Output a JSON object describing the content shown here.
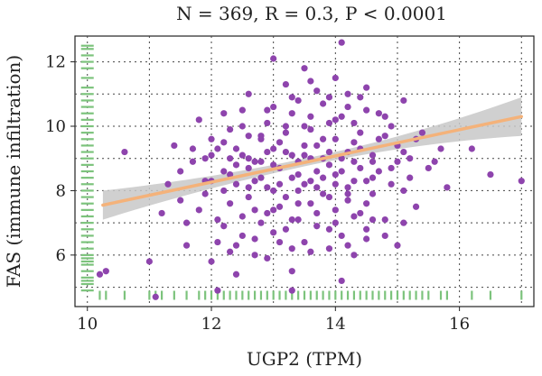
{
  "chart_data": {
    "type": "scatter",
    "title": "N = 369, R = 0.3, P < 0.0001",
    "xlabel": "UGP2 (TPM)",
    "ylabel": "FAS (immune infiltration)",
    "xlim": [
      9.8,
      17.2
    ],
    "ylim": [
      4.4,
      12.8
    ],
    "x_ticks": [
      10,
      12,
      14,
      16
    ],
    "y_ticks": [
      6,
      8,
      10,
      12
    ],
    "grid": true,
    "grid_style": "dotted",
    "regression": {
      "x_start": 10.25,
      "y_start": 7.55,
      "x_end": 17.0,
      "y_end": 10.3,
      "ci_halfwidth_start": 0.45,
      "ci_halfwidth_mid": 0.12,
      "ci_halfwidth_end": 0.6
    },
    "marginal_rug": true,
    "colors": {
      "points": "#8e44ad",
      "regression": "#f4b27a",
      "ci_band": "#c8c8c8",
      "rug": "#7cc37c"
    },
    "series": [
      {
        "values_note": "approximate scatter points (x, y)",
        "points": [
          [
            10.2,
            5.4
          ],
          [
            10.3,
            5.5
          ],
          [
            10.6,
            9.2
          ],
          [
            11.0,
            5.8
          ],
          [
            11.1,
            4.7
          ],
          [
            11.2,
            7.3
          ],
          [
            11.3,
            8.2
          ],
          [
            11.4,
            9.4
          ],
          [
            11.5,
            7.7
          ],
          [
            11.6,
            7.0
          ],
          [
            11.6,
            6.3
          ],
          [
            11.7,
            9.3
          ],
          [
            11.8,
            10.2
          ],
          [
            11.9,
            7.9
          ],
          [
            11.9,
            9.0
          ],
          [
            12.0,
            5.8
          ],
          [
            12.0,
            8.3
          ],
          [
            12.0,
            9.6
          ],
          [
            12.1,
            7.1
          ],
          [
            12.1,
            4.9
          ],
          [
            12.2,
            10.4
          ],
          [
            12.2,
            6.9
          ],
          [
            12.2,
            8.6
          ],
          [
            12.3,
            6.1
          ],
          [
            12.3,
            9.9
          ],
          [
            12.3,
            7.6
          ],
          [
            12.4,
            8.8
          ],
          [
            12.4,
            5.4
          ],
          [
            12.4,
            9.3
          ],
          [
            12.5,
            7.2
          ],
          [
            12.5,
            10.5
          ],
          [
            12.5,
            6.6
          ],
          [
            12.6,
            8.1
          ],
          [
            12.6,
            9.0
          ],
          [
            12.6,
            11.0
          ],
          [
            12.7,
            7.4
          ],
          [
            12.7,
            8.9
          ],
          [
            12.7,
            6.0
          ],
          [
            12.8,
            9.7
          ],
          [
            12.8,
            7.0
          ],
          [
            12.8,
            8.4
          ],
          [
            12.9,
            10.1
          ],
          [
            12.9,
            5.9
          ],
          [
            12.9,
            9.2
          ],
          [
            13.0,
            12.1
          ],
          [
            13.0,
            8.0
          ],
          [
            13.0,
            7.4
          ],
          [
            13.0,
            10.6
          ],
          [
            13.1,
            6.4
          ],
          [
            13.1,
            9.5
          ],
          [
            13.1,
            8.7
          ],
          [
            13.2,
            11.3
          ],
          [
            13.2,
            7.8
          ],
          [
            13.2,
            6.8
          ],
          [
            13.2,
            10.0
          ],
          [
            13.3,
            8.4
          ],
          [
            13.3,
            9.1
          ],
          [
            13.3,
            5.5
          ],
          [
            13.4,
            10.8
          ],
          [
            13.4,
            7.1
          ],
          [
            13.4,
            8.9
          ],
          [
            13.5,
            11.8
          ],
          [
            13.5,
            9.4
          ],
          [
            13.5,
            6.4
          ],
          [
            13.5,
            8.2
          ],
          [
            13.6,
            10.3
          ],
          [
            13.6,
            7.6
          ],
          [
            13.6,
            9.9
          ],
          [
            13.7,
            11.1
          ],
          [
            13.7,
            8.6
          ],
          [
            13.7,
            6.9
          ],
          [
            13.8,
            9.6
          ],
          [
            13.8,
            7.9
          ],
          [
            13.8,
            10.7
          ],
          [
            13.9,
            8.8
          ],
          [
            13.9,
            6.2
          ],
          [
            13.9,
            9.2
          ],
          [
            14.0,
            11.5
          ],
          [
            14.0,
            7.4
          ],
          [
            14.0,
            8.5
          ],
          [
            14.0,
            10.2
          ],
          [
            14.1,
            9.0
          ],
          [
            14.1,
            6.6
          ],
          [
            14.1,
            12.6
          ],
          [
            14.2,
            8.1
          ],
          [
            14.2,
            10.6
          ],
          [
            14.2,
            7.7
          ],
          [
            14.3,
            9.5
          ],
          [
            14.3,
            8.9
          ],
          [
            14.3,
            6.0
          ],
          [
            14.4,
            10.9
          ],
          [
            14.4,
            7.3
          ],
          [
            14.4,
            9.8
          ],
          [
            14.5,
            8.3
          ],
          [
            14.5,
            11.2
          ],
          [
            14.5,
            6.8
          ],
          [
            14.6,
            9.1
          ],
          [
            14.6,
            7.9
          ],
          [
            14.7,
            10.4
          ],
          [
            14.7,
            8.6
          ],
          [
            14.8,
            9.7
          ],
          [
            14.8,
            7.1
          ],
          [
            14.9,
            10.0
          ],
          [
            14.9,
            8.2
          ],
          [
            15.0,
            9.4
          ],
          [
            15.0,
            6.3
          ],
          [
            15.1,
            10.8
          ],
          [
            15.1,
            8.0
          ],
          [
            15.2,
            9.0
          ],
          [
            15.3,
            7.5
          ],
          [
            15.4,
            9.8
          ],
          [
            15.5,
            8.7
          ],
          [
            15.7,
            9.3
          ],
          [
            15.8,
            8.1
          ],
          [
            16.2,
            9.3
          ],
          [
            16.5,
            8.5
          ],
          [
            17.0,
            8.3
          ],
          [
            14.1,
            5.2
          ],
          [
            13.3,
            4.9
          ],
          [
            12.2,
            8.0
          ],
          [
            12.6,
            9.7
          ],
          [
            13.1,
            8.2
          ],
          [
            13.4,
            8.0
          ],
          [
            13.6,
            9.0
          ],
          [
            13.8,
            8.4
          ],
          [
            14.0,
            9.6
          ],
          [
            14.2,
            9.2
          ],
          [
            14.4,
            8.7
          ],
          [
            14.6,
            8.9
          ],
          [
            12.8,
            8.9
          ],
          [
            12.9,
            8.1
          ],
          [
            13.0,
            9.3
          ],
          [
            13.2,
            9.2
          ],
          [
            13.3,
            10.4
          ],
          [
            13.5,
            10.0
          ],
          [
            13.7,
            9.4
          ],
          [
            13.9,
            10.1
          ],
          [
            14.1,
            10.3
          ],
          [
            14.3,
            10.1
          ],
          [
            12.4,
            8.2
          ],
          [
            12.7,
            8.3
          ],
          [
            13.1,
            7.5
          ],
          [
            13.4,
            7.6
          ],
          [
            13.6,
            8.3
          ],
          [
            13.9,
            7.8
          ],
          [
            14.2,
            7.9
          ],
          [
            14.5,
            7.6
          ],
          [
            12.5,
            9.1
          ],
          [
            12.8,
            9.6
          ],
          [
            13.2,
            9.8
          ],
          [
            13.5,
            9.1
          ],
          [
            13.8,
            9.0
          ],
          [
            14.1,
            8.6
          ],
          [
            14.4,
            9.3
          ],
          [
            14.7,
            9.6
          ],
          [
            12.3,
            8.5
          ],
          [
            12.6,
            7.8
          ],
          [
            12.9,
            7.3
          ],
          [
            13.3,
            7.1
          ],
          [
            13.7,
            7.3
          ],
          [
            14.0,
            7.0
          ],
          [
            14.3,
            7.2
          ],
          [
            14.6,
            7.1
          ],
          [
            12.0,
            9.1
          ],
          [
            12.2,
            9.5
          ],
          [
            12.5,
            10.0
          ],
          [
            12.9,
            10.5
          ],
          [
            13.3,
            10.9
          ],
          [
            13.6,
            11.4
          ],
          [
            13.9,
            10.9
          ],
          [
            14.2,
            11.0
          ],
          [
            14.5,
            10.5
          ],
          [
            14.8,
            10.3
          ],
          [
            15.0,
            8.9
          ],
          [
            15.2,
            8.4
          ],
          [
            15.3,
            9.6
          ],
          [
            15.6,
            8.9
          ],
          [
            11.8,
            7.4
          ],
          [
            12.1,
            6.4
          ],
          [
            12.4,
            6.3
          ],
          [
            12.7,
            6.5
          ],
          [
            13.0,
            6.7
          ],
          [
            13.3,
            6.2
          ],
          [
            13.6,
            6.1
          ],
          [
            13.9,
            6.8
          ],
          [
            14.2,
            6.3
          ],
          [
            14.5,
            6.5
          ],
          [
            14.8,
            6.6
          ],
          [
            15.1,
            7.0
          ],
          [
            11.5,
            8.6
          ],
          [
            11.7,
            8.9
          ],
          [
            11.9,
            8.3
          ],
          [
            12.1,
            9.3
          ],
          [
            12.3,
            9.0
          ],
          [
            12.6,
            8.7
          ],
          [
            13.0,
            8.8
          ],
          [
            13.4,
            8.5
          ],
          [
            13.7,
            8.1
          ],
          [
            14.0,
            8.2
          ],
          [
            14.3,
            8.3
          ],
          [
            14.6,
            8.4
          ],
          [
            14.9,
            8.7
          ],
          [
            15.1,
            9.2
          ]
        ]
      }
    ],
    "rug_y_values": [
      4.9,
      5.1,
      5.2,
      5.3,
      5.5,
      5.7,
      5.8,
      5.9,
      6.0,
      6.2,
      6.4,
      6.6,
      6.8,
      7.0,
      7.2,
      7.4,
      7.6,
      7.8,
      8.0,
      8.2,
      8.4,
      8.6,
      8.8,
      9.0,
      9.2,
      9.4,
      9.6,
      9.8,
      10.0,
      10.2,
      10.4,
      10.6,
      10.8,
      11.0,
      11.2,
      11.5,
      11.8,
      12.0,
      12.2,
      12.4,
      12.5
    ],
    "rug_x_values": [
      10.2,
      10.3,
      10.6,
      11.0,
      11.1,
      11.2,
      11.4,
      11.6,
      11.8,
      11.9,
      12.0,
      12.1,
      12.2,
      12.3,
      12.4,
      12.5,
      12.6,
      12.7,
      12.8,
      12.9,
      13.0,
      13.1,
      13.2,
      13.3,
      13.4,
      13.5,
      13.6,
      13.7,
      13.8,
      13.9,
      14.0,
      14.1,
      14.2,
      14.3,
      14.4,
      14.5,
      14.6,
      14.7,
      14.8,
      14.9,
      15.0,
      15.1,
      15.2,
      15.3,
      15.4,
      15.5,
      15.7,
      15.8,
      16.2,
      16.5,
      17.0
    ]
  }
}
